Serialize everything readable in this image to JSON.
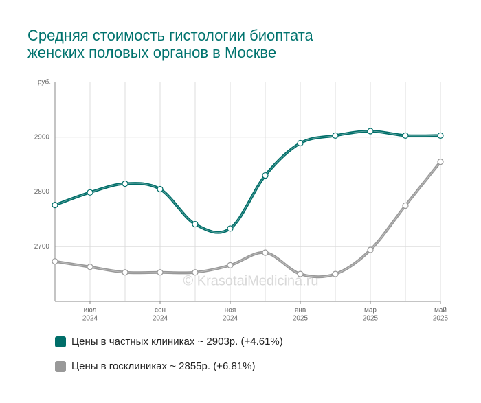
{
  "chart_data": {
    "type": "line",
    "title": [
      "Средняя стоимость гистологии биоптата",
      "женских половых органов в Москве"
    ],
    "y_unit": "руб.",
    "watermark": "© KrasotaiMedicina.ru",
    "categories": [
      null,
      "июл",
      null,
      "сен",
      null,
      "ноя",
      null,
      "янв",
      null,
      "мар",
      null,
      "май"
    ],
    "category_years": [
      null,
      "2024",
      null,
      "2024",
      null,
      "2024",
      null,
      "2025",
      null,
      "2025",
      null,
      "2025"
    ],
    "series": [
      {
        "name": "Цены в частных клиниках ~ 2903р. (+4.61%)",
        "color": "#006e69",
        "values": [
          2776,
          2799,
          2815,
          2805,
          2741,
          2733,
          2830,
          2889,
          2903,
          2911,
          2903,
          2903
        ]
      },
      {
        "name": "Цены в госклиниках ~ 2855р. (+6.81%)",
        "color": "#999999",
        "values": [
          2673,
          2663,
          2653,
          2653,
          2653,
          2666,
          2689,
          2650,
          2650,
          2694,
          2775,
          2855
        ]
      }
    ],
    "ylim": [
      2600,
      3000
    ],
    "yticks": [
      2700,
      2800,
      2900
    ],
    "grid": true
  }
}
